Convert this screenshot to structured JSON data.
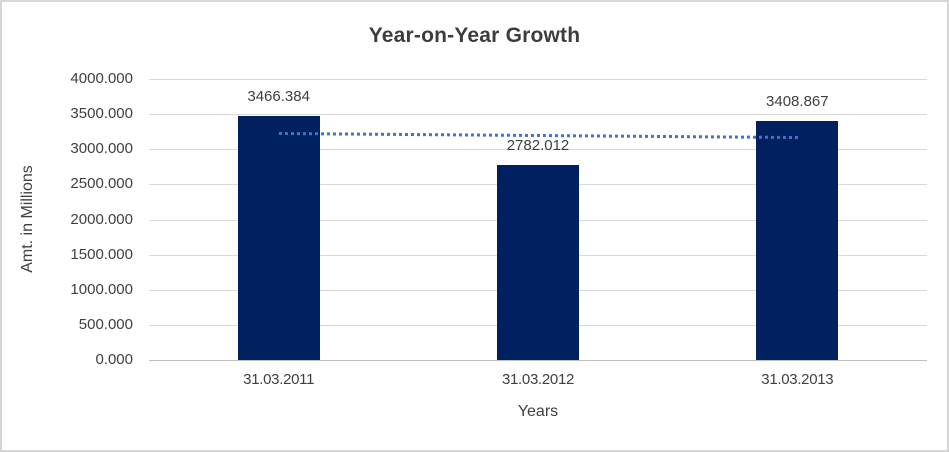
{
  "chart_data": {
    "type": "bar",
    "title": "Year-on-Year Growth",
    "categories": [
      "31.03.2011",
      "31.03.2012",
      "31.03.2013"
    ],
    "values": [
      3466.384,
      2782.012,
      3408.867
    ],
    "data_labels": [
      "3466.384",
      "2782.012",
      "3408.867"
    ],
    "xlabel": "Years",
    "ylabel": "Amt. in Millions",
    "ylim": [
      0,
      4000
    ],
    "ytick_step": 500,
    "yticks": [
      {
        "value": 0,
        "label": "0.000"
      },
      {
        "value": 500,
        "label": "500.000"
      },
      {
        "value": 1000,
        "label": "1000.000"
      },
      {
        "value": 1500,
        "label": "1500.000"
      },
      {
        "value": 2000,
        "label": "2000.000"
      },
      {
        "value": 2500,
        "label": "2500.000"
      },
      {
        "value": 3000,
        "label": "3000.000"
      },
      {
        "value": 3500,
        "label": "3500.000"
      },
      {
        "value": 4000,
        "label": "4000.000"
      }
    ],
    "grid": "horizontal",
    "legend": "none",
    "trendline": {
      "type": "linear",
      "line_style": "dotted",
      "values": [
        3247.85,
        3219.09,
        3190.33
      ]
    }
  },
  "colors": {
    "bar": "#002060",
    "trendline": "#4472c4",
    "gridline": "#d9d9d9",
    "axis_line": "#bfbfbf",
    "text": "#404040",
    "title_text": "#3d3d3d",
    "border": "#d6d6d6",
    "background": "#ffffff"
  }
}
